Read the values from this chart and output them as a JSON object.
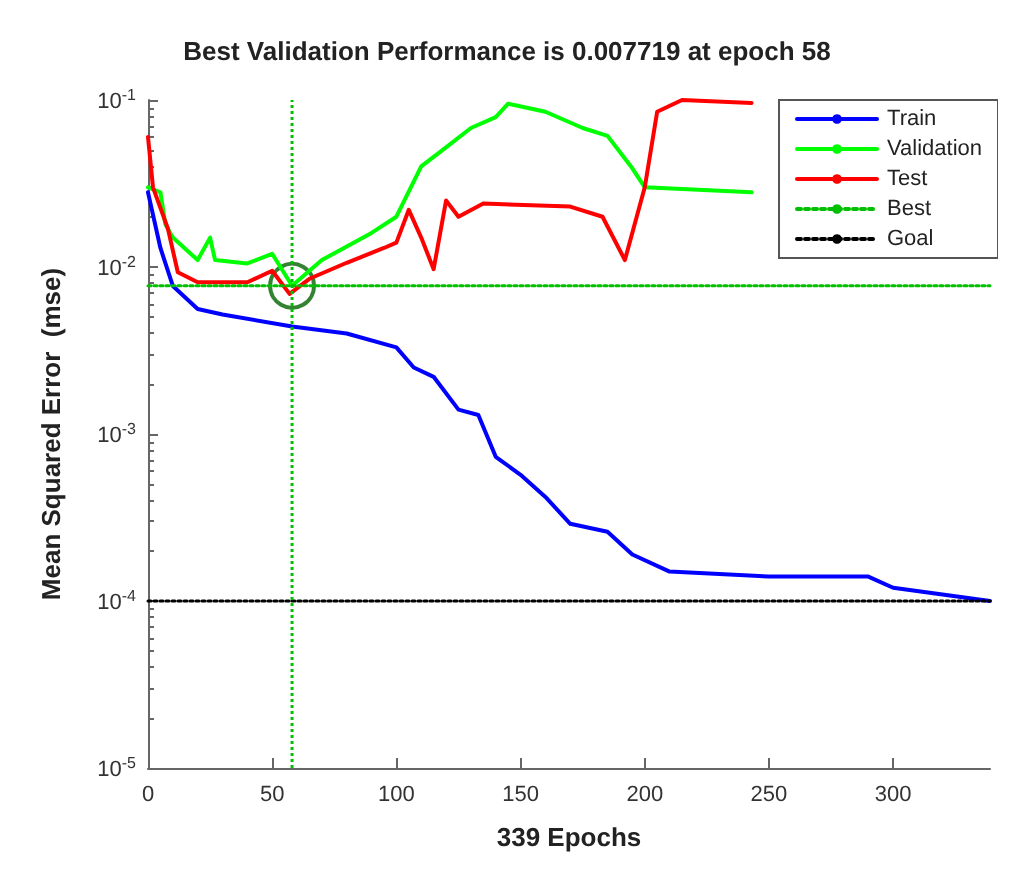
{
  "chart_data": {
    "type": "line",
    "title": "Best Validation Performance is 0.007719 at epoch 58",
    "xlabel": "339 Epochs",
    "ylabel": "Mean Squared Error  (mse)",
    "log": "y",
    "xlim": [
      0,
      339
    ],
    "xticks": [
      0,
      50,
      100,
      150,
      200,
      250,
      300
    ],
    "ylim": [
      1e-05,
      0.1
    ],
    "yticks": [
      {
        "value": 1e-05,
        "label": "10$^{-5}$"
      },
      {
        "value": 0.0001,
        "label": "10$^{-4}$"
      },
      {
        "value": 0.001,
        "label": "10$^{-3}$"
      },
      {
        "value": 0.01,
        "label": "10$^{-2}$"
      },
      {
        "value": 0.1,
        "label": "10$^{-1}$"
      }
    ],
    "grid": false,
    "legend": "top right",
    "marker": "none",
    "line_style": "solid",
    "series": [
      {
        "name": "Train",
        "color": "#0000ff",
        "x": [
          0,
          5,
          10,
          20,
          30,
          58,
          80,
          100,
          107,
          115,
          125,
          133,
          140,
          150,
          160,
          170,
          185,
          195,
          210,
          250,
          290,
          300,
          339
        ],
        "values": [
          0.028,
          0.013,
          0.0077,
          0.0056,
          0.0052,
          0.0044,
          0.004,
          0.0033,
          0.0025,
          0.0022,
          0.0014,
          0.0013,
          0.00073,
          0.00057,
          0.00042,
          0.00029,
          0.00026,
          0.00019,
          0.00015,
          0.00014,
          0.00014,
          0.00012,
          0.0001
        ]
      },
      {
        "name": "Validation",
        "color": "#00ff00",
        "x": [
          0,
          5,
          7,
          10,
          20,
          25,
          27,
          40,
          50,
          58,
          70,
          90,
          100,
          110,
          120,
          130,
          140,
          145,
          160,
          175,
          185,
          195,
          200,
          243
        ],
        "values": [
          0.03,
          0.028,
          0.018,
          0.015,
          0.011,
          0.015,
          0.011,
          0.0105,
          0.012,
          0.007719,
          0.011,
          0.016,
          0.02,
          0.04,
          0.052,
          0.068,
          0.079,
          0.095,
          0.085,
          0.068,
          0.061,
          0.039,
          0.03,
          0.028
        ]
      },
      {
        "name": "Test",
        "color": "#ff0000",
        "x": [
          0,
          2,
          8,
          12,
          20,
          40,
          50,
          57,
          65,
          80,
          95,
          100,
          105,
          110,
          115,
          120,
          125,
          135,
          170,
          183,
          192,
          200,
          205,
          215,
          243
        ],
        "values": [
          0.06,
          0.03,
          0.017,
          0.0093,
          0.0081,
          0.0081,
          0.0095,
          0.0069,
          0.0085,
          0.0106,
          0.013,
          0.014,
          0.022,
          0.015,
          0.0097,
          0.025,
          0.02,
          0.024,
          0.023,
          0.02,
          0.011,
          0.03,
          0.085,
          0.1,
          0.096
        ]
      },
      {
        "name": "Best",
        "color": "#00c000",
        "line_style": "dotted",
        "x": [
          0,
          339
        ],
        "values": [
          0.007719,
          0.007719
        ]
      },
      {
        "name": "Goal",
        "color": "#000000",
        "line_style": "dotted",
        "x": [
          0,
          339
        ],
        "values": [
          0.0001,
          0.0001
        ]
      },
      {
        "type": "scatter",
        "color": "#006400",
        "marker": "circle",
        "x": [
          58
        ],
        "values": [
          0.007719
        ]
      }
    ],
    "ref_lines": [
      {
        "axis": "x",
        "value": 58,
        "color": "#00c000",
        "line_style": "dotted"
      }
    ]
  }
}
